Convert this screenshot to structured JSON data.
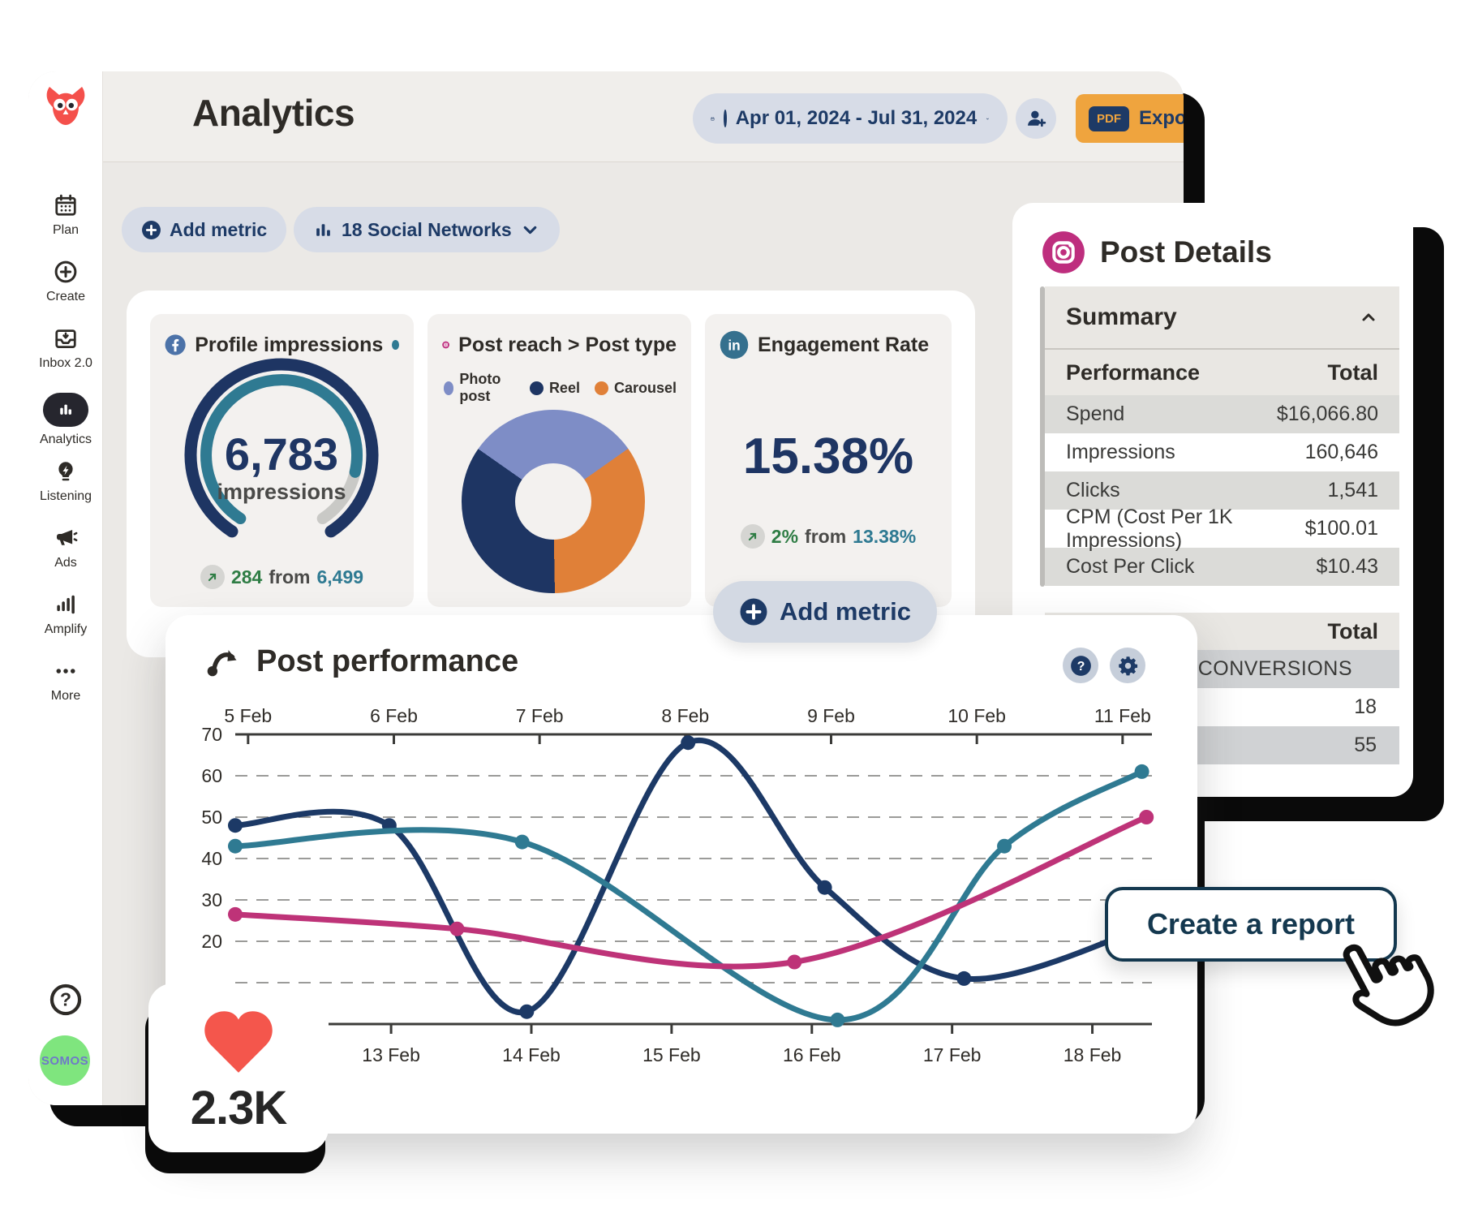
{
  "header": {
    "title": "Analytics",
    "date_range": "Apr 01, 2024 - Jul 31, 2024",
    "export": {
      "badge": "PDF",
      "label": "Export"
    }
  },
  "toolbar": {
    "add_metric": "Add metric",
    "networks": "18 Social Networks"
  },
  "sidebar": {
    "items": [
      {
        "label": "Plan",
        "icon": "calendar",
        "active": false
      },
      {
        "label": "Create",
        "icon": "plus-circle",
        "active": false
      },
      {
        "label": "Inbox 2.0",
        "icon": "inbox",
        "active": false
      },
      {
        "label": "Analytics",
        "icon": "analytics-bars",
        "active": true
      },
      {
        "label": "Listening",
        "icon": "lightbulb",
        "active": false
      },
      {
        "label": "Ads",
        "icon": "megaphone",
        "active": false
      },
      {
        "label": "Amplify",
        "icon": "amplify-bars",
        "active": false
      },
      {
        "label": "More",
        "icon": "dots",
        "active": false
      }
    ],
    "avatar_text": "SOMOS"
  },
  "metrics": {
    "impressions": {
      "network": "facebook",
      "title": "Profile impressions",
      "value": "6,783",
      "unit": "impressions",
      "delta": "284",
      "from_word": "from",
      "previous": "6,499"
    },
    "reach": {
      "network": "instagram",
      "title": "Post reach > Post type"
    },
    "engagement": {
      "network": "linkedin",
      "title": "Engagement Rate",
      "value": "15.38%",
      "delta": "2%",
      "from_word": "from",
      "previous": "13.38%"
    },
    "add_metric_label": "Add metric"
  },
  "post_details": {
    "title": "Post Details",
    "section": "Summary",
    "columns": [
      "Performance",
      "Total"
    ],
    "rows": [
      [
        "Spend",
        "$16,066.80"
      ],
      [
        "Impressions",
        "160,646"
      ],
      [
        "Clicks",
        "1,541"
      ],
      [
        "CPM (Cost Per 1K Impressions)",
        "$100.01"
      ],
      [
        "Cost Per Click",
        "$10.43"
      ]
    ],
    "totals": {
      "header": "Total",
      "label": "CONVERSIONS",
      "values": [
        "18",
        "55"
      ]
    }
  },
  "performance": {
    "title": "Post performance"
  },
  "cta": {
    "label": "Create a report"
  },
  "likes": {
    "value": "2.3K"
  },
  "chart_data": {
    "gauge": {
      "type": "gauge",
      "metric": "Profile impressions",
      "value": 6783,
      "previous": 6499,
      "delta": 284,
      "fraction": 0.85,
      "colors": {
        "outer": "#1E3563",
        "progress": "#2F7A92",
        "track": "#C9C9C6"
      }
    },
    "donut": {
      "type": "pie",
      "metric": "Post reach by post type",
      "start_angle_deg": -55,
      "slices": [
        {
          "label": "Photo post",
          "pct": 30.5,
          "color": "#7E8DC6"
        },
        {
          "label": "Carousel",
          "pct": 34.5,
          "color": "#E08038"
        },
        {
          "label": "Reel",
          "pct": 35,
          "color": "#1E3563"
        }
      ],
      "legend_order": [
        "Photo post",
        "Reel",
        "Carousel"
      ]
    },
    "line": {
      "type": "line",
      "title": "Post performance",
      "ylim": [
        0,
        70
      ],
      "y_ticks": [
        70,
        60,
        50,
        40,
        30,
        20
      ],
      "gridlines": [
        60,
        50,
        40,
        30,
        20,
        10
      ],
      "grid": true,
      "top_axis": {
        "labels": [
          "5 Feb",
          "6 Feb",
          "7 Feb",
          "8 Feb",
          "9 Feb",
          "10 Feb",
          "11 Feb"
        ],
        "pos": [
          0.014,
          0.173,
          0.332,
          0.491,
          0.65,
          0.809,
          0.968
        ]
      },
      "bottom_axis": {
        "labels": [
          "13 Feb",
          "14 Feb",
          "15 Feb",
          "16 Feb",
          "17 Feb",
          "18 Feb"
        ],
        "pos": [
          0.17,
          0.323,
          0.476,
          0.629,
          0.782,
          0.935
        ]
      },
      "series": [
        {
          "name": "series-navy",
          "color": "#1C3966",
          "points": [
            [
              0,
              48,
              1
            ],
            [
              0.168,
              48,
              1
            ],
            [
              0.318,
              3,
              1
            ],
            [
              0.494,
              68,
              1
            ],
            [
              0.643,
              33,
              1
            ],
            [
              0.795,
              11,
              1
            ],
            [
              1,
              24,
              0
            ]
          ]
        },
        {
          "name": "series-teal",
          "color": "#2F7A92",
          "points": [
            [
              0,
              43,
              1
            ],
            [
              0.313,
              44,
              1
            ],
            [
              0.657,
              1,
              1
            ],
            [
              0.839,
              43,
              1
            ],
            [
              0.989,
              61,
              1
            ]
          ]
        },
        {
          "name": "series-magenta",
          "color": "#BE3378",
          "points": [
            [
              0,
              26.5,
              1
            ],
            [
              0.242,
              23,
              1
            ],
            [
              0.61,
              15,
              1
            ],
            [
              0.994,
              50,
              1
            ]
          ]
        }
      ]
    }
  },
  "colors": {
    "navy": "#1D3A66",
    "orange": "#EFA43E",
    "teal": "#2F7A92",
    "magenta": "#BE3378",
    "green": "#2F7D45",
    "red": "#F4564C",
    "facebook": "#4C72A8",
    "instagram": "#BE2E7E",
    "linkedin": "#35708E"
  }
}
